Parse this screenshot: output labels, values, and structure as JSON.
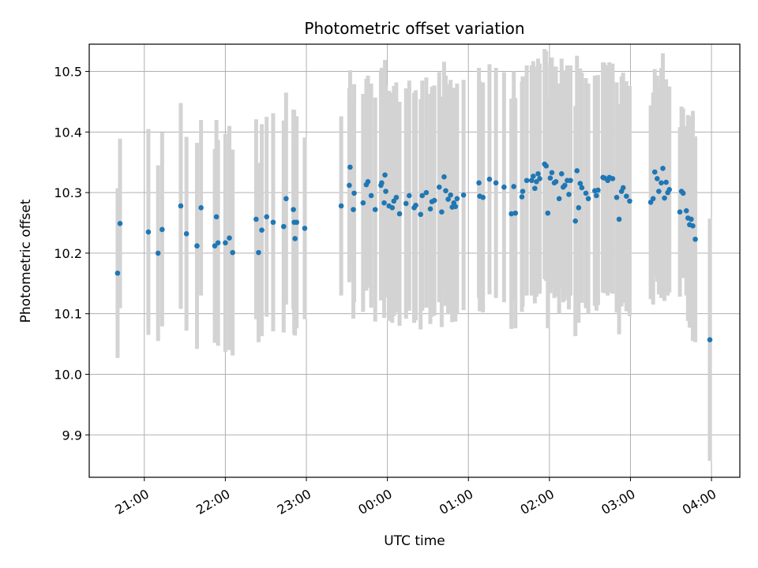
{
  "chart_data": {
    "type": "scatter",
    "title": "Photometric offset variation",
    "xlabel": "UTC time",
    "ylabel": "Photometric offset",
    "grid": true,
    "x_range_hours": [
      -3.68,
      4.35
    ],
    "ylim": [
      9.83,
      10.545
    ],
    "x_ticks": [
      {
        "hour": -3,
        "label": "21:00"
      },
      {
        "hour": -2,
        "label": "22:00"
      },
      {
        "hour": -1,
        "label": "23:00"
      },
      {
        "hour": 0,
        "label": "00:00"
      },
      {
        "hour": 1,
        "label": "01:00"
      },
      {
        "hour": 2,
        "label": "02:00"
      },
      {
        "hour": 3,
        "label": "03:00"
      },
      {
        "hour": 4,
        "label": "04:00"
      }
    ],
    "y_ticks": [
      {
        "value": 9.9,
        "label": "9.9"
      },
      {
        "value": 10.0,
        "label": "10.0"
      },
      {
        "value": 10.1,
        "label": "10.1"
      },
      {
        "value": 10.2,
        "label": "10.2"
      },
      {
        "value": 10.3,
        "label": "10.3"
      },
      {
        "value": 10.4,
        "label": "10.4"
      },
      {
        "value": 10.5,
        "label": "10.5"
      }
    ],
    "colors": {
      "point": "#1f77b4",
      "errorbar": "#d3d3d3",
      "grid": "#b0b0b0"
    },
    "series": [
      {
        "columns": [
          "utc_hour",
          "offset",
          "error"
        ],
        "points": [
          [
            -3.33,
            10.167,
            0.14
          ],
          [
            -3.3,
            10.249,
            0.14
          ],
          [
            -2.95,
            10.235,
            0.17
          ],
          [
            -2.83,
            10.2,
            0.145
          ],
          [
            -2.78,
            10.239,
            0.16
          ],
          [
            -2.55,
            10.278,
            0.17
          ],
          [
            -2.48,
            10.232,
            0.16
          ],
          [
            -2.35,
            10.212,
            0.17
          ],
          [
            -2.3,
            10.275,
            0.145
          ],
          [
            -2.13,
            10.212,
            0.16
          ],
          [
            -2.11,
            10.26,
            0.16
          ],
          [
            -2.09,
            10.217,
            0.17
          ],
          [
            -2.0,
            10.217,
            0.18
          ],
          [
            -1.95,
            10.225,
            0.185
          ],
          [
            -1.91,
            10.201,
            0.17
          ],
          [
            -1.62,
            10.256,
            0.165
          ],
          [
            -1.59,
            10.201,
            0.148
          ],
          [
            -1.55,
            10.238,
            0.175
          ],
          [
            -1.49,
            10.26,
            0.165
          ],
          [
            -1.41,
            10.251,
            0.18
          ],
          [
            -1.28,
            10.244,
            0.175
          ],
          [
            -1.25,
            10.29,
            0.175
          ],
          [
            -1.16,
            10.272,
            0.165
          ],
          [
            -1.15,
            10.251,
            0.185
          ],
          [
            -1.14,
            10.224,
            0.16
          ],
          [
            -1.12,
            10.251,
            0.175
          ],
          [
            -1.02,
            10.241,
            0.15
          ],
          [
            -0.57,
            10.278,
            0.148
          ],
          [
            -0.47,
            10.312,
            0.16
          ],
          [
            -0.46,
            10.342,
            0.16
          ],
          [
            -0.41,
            10.299,
            0.18
          ],
          [
            -0.42,
            10.272,
            0.18
          ],
          [
            -0.3,
            10.283,
            0.18
          ],
          [
            -0.26,
            10.313,
            0.175
          ],
          [
            -0.24,
            10.318,
            0.175
          ],
          [
            -0.2,
            10.295,
            0.185
          ],
          [
            -0.15,
            10.272,
            0.185
          ],
          [
            -0.08,
            10.312,
            0.19
          ],
          [
            -0.07,
            10.316,
            0.19
          ],
          [
            -0.04,
            10.283,
            0.19
          ],
          [
            -0.03,
            10.329,
            0.19
          ],
          [
            -0.02,
            10.302,
            0.175
          ],
          [
            0.02,
            10.278,
            0.19
          ],
          [
            0.06,
            10.275,
            0.19
          ],
          [
            0.08,
            10.286,
            0.19
          ],
          [
            0.11,
            10.292,
            0.19
          ],
          [
            0.15,
            10.265,
            0.185
          ],
          [
            0.23,
            10.282,
            0.19
          ],
          [
            0.27,
            10.295,
            0.19
          ],
          [
            0.33,
            10.275,
            0.19
          ],
          [
            0.35,
            10.279,
            0.19
          ],
          [
            0.41,
            10.264,
            0.19
          ],
          [
            0.43,
            10.295,
            0.19
          ],
          [
            0.48,
            10.3,
            0.19
          ],
          [
            0.53,
            10.273,
            0.19
          ],
          [
            0.55,
            10.285,
            0.19
          ],
          [
            0.58,
            10.287,
            0.19
          ],
          [
            0.64,
            10.309,
            0.19
          ],
          [
            0.67,
            10.268,
            0.19
          ],
          [
            0.7,
            10.326,
            0.19
          ],
          [
            0.72,
            10.303,
            0.19
          ],
          [
            0.75,
            10.289,
            0.19
          ],
          [
            0.78,
            10.296,
            0.19
          ],
          [
            0.8,
            10.276,
            0.19
          ],
          [
            0.82,
            10.283,
            0.19
          ],
          [
            0.84,
            10.277,
            0.19
          ],
          [
            0.86,
            10.29,
            0.19
          ],
          [
            0.94,
            10.296,
            0.19
          ],
          [
            1.13,
            10.316,
            0.19
          ],
          [
            1.14,
            10.294,
            0.19
          ],
          [
            1.18,
            10.292,
            0.19
          ],
          [
            1.26,
            10.322,
            0.19
          ],
          [
            1.34,
            10.316,
            0.19
          ],
          [
            1.44,
            10.309,
            0.19
          ],
          [
            1.53,
            10.265,
            0.19
          ],
          [
            1.58,
            10.266,
            0.19
          ],
          [
            1.56,
            10.31,
            0.19
          ],
          [
            1.66,
            10.293,
            0.19
          ],
          [
            1.67,
            10.302,
            0.19
          ],
          [
            1.72,
            10.32,
            0.19
          ],
          [
            1.78,
            10.32,
            0.19
          ],
          [
            1.8,
            10.327,
            0.19
          ],
          [
            1.82,
            10.307,
            0.19
          ],
          [
            1.84,
            10.318,
            0.19
          ],
          [
            1.86,
            10.331,
            0.19
          ],
          [
            1.88,
            10.323,
            0.19
          ],
          [
            1.94,
            10.347,
            0.19
          ],
          [
            1.96,
            10.344,
            0.19
          ],
          [
            1.98,
            10.266,
            0.19
          ],
          [
            2.01,
            10.324,
            0.19
          ],
          [
            2.03,
            10.333,
            0.19
          ],
          [
            2.06,
            10.316,
            0.19
          ],
          [
            2.08,
            10.318,
            0.19
          ],
          [
            2.12,
            10.29,
            0.19
          ],
          [
            2.15,
            10.331,
            0.19
          ],
          [
            2.17,
            10.309,
            0.19
          ],
          [
            2.19,
            10.312,
            0.19
          ],
          [
            2.22,
            10.32,
            0.19
          ],
          [
            2.24,
            10.297,
            0.19
          ],
          [
            2.26,
            10.32,
            0.19
          ],
          [
            2.32,
            10.253,
            0.19
          ],
          [
            2.34,
            10.336,
            0.19
          ],
          [
            2.36,
            10.275,
            0.19
          ],
          [
            2.38,
            10.315,
            0.19
          ],
          [
            2.4,
            10.308,
            0.19
          ],
          [
            2.45,
            10.299,
            0.19
          ],
          [
            2.48,
            10.29,
            0.19
          ],
          [
            2.56,
            10.303,
            0.19
          ],
          [
            2.58,
            10.295,
            0.19
          ],
          [
            2.6,
            10.304,
            0.19
          ],
          [
            2.66,
            10.325,
            0.19
          ],
          [
            2.68,
            10.324,
            0.19
          ],
          [
            2.72,
            10.32,
            0.19
          ],
          [
            2.74,
            10.325,
            0.19
          ],
          [
            2.78,
            10.323,
            0.19
          ],
          [
            2.83,
            10.292,
            0.19
          ],
          [
            2.86,
            10.256,
            0.19
          ],
          [
            2.89,
            10.302,
            0.19
          ],
          [
            2.91,
            10.308,
            0.19
          ],
          [
            2.95,
            10.294,
            0.19
          ],
          [
            2.99,
            10.286,
            0.19
          ],
          [
            3.25,
            10.284,
            0.16
          ],
          [
            3.28,
            10.29,
            0.175
          ],
          [
            3.3,
            10.334,
            0.17
          ],
          [
            3.33,
            10.323,
            0.17
          ],
          [
            3.35,
            10.302,
            0.17
          ],
          [
            3.38,
            10.316,
            0.19
          ],
          [
            3.4,
            10.34,
            0.19
          ],
          [
            3.42,
            10.291,
            0.17
          ],
          [
            3.44,
            10.317,
            0.17
          ],
          [
            3.46,
            10.3,
            0.17
          ],
          [
            3.48,
            10.305,
            0.17
          ],
          [
            3.61,
            10.268,
            0.14
          ],
          [
            3.63,
            10.302,
            0.14
          ],
          [
            3.65,
            10.299,
            0.14
          ],
          [
            3.69,
            10.27,
            0.14
          ],
          [
            3.71,
            10.258,
            0.17
          ],
          [
            3.73,
            10.247,
            0.17
          ],
          [
            3.75,
            10.256,
            0.17
          ],
          [
            3.77,
            10.245,
            0.19
          ],
          [
            3.8,
            10.223,
            0.17
          ],
          [
            3.98,
            10.057,
            0.2
          ]
        ]
      }
    ]
  }
}
